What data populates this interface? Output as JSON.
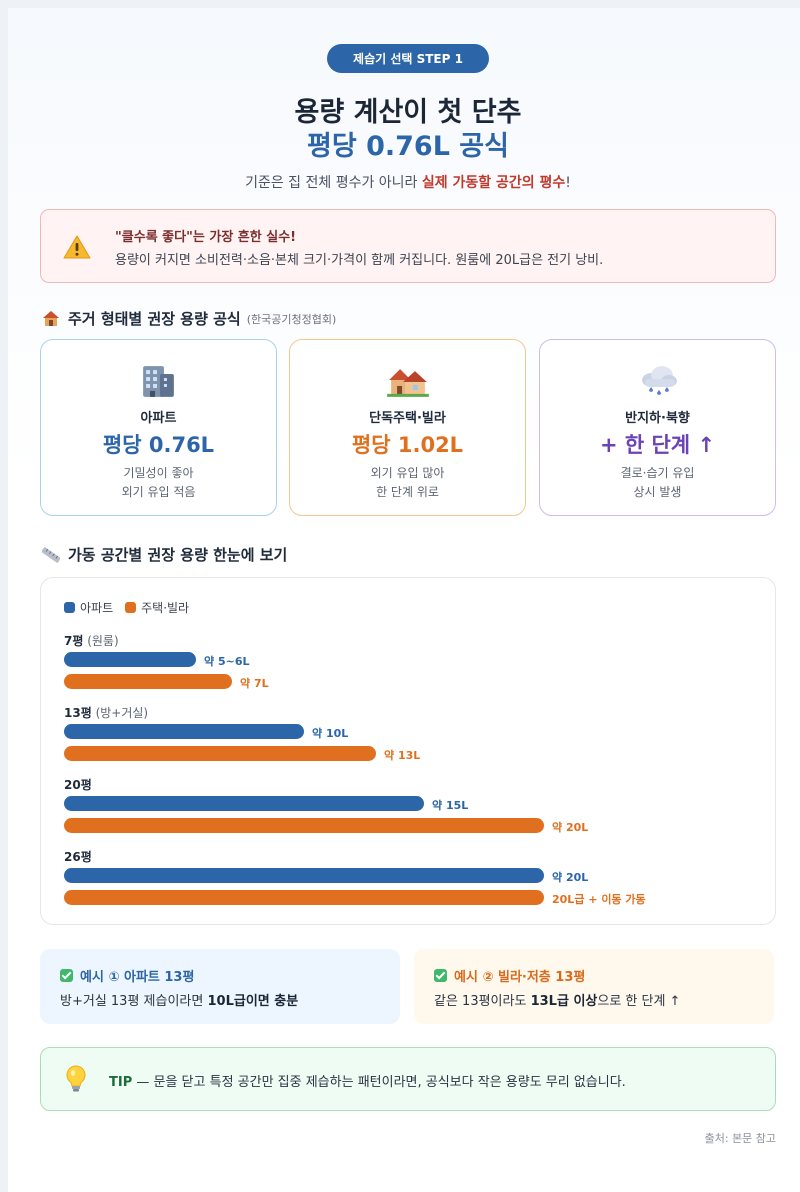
{
  "badge": "제습기 선택 STEP 1",
  "title_line1": "용량 계산이 첫 단추",
  "title_line2": "평당 0.76L 공식",
  "subtitle": {
    "pre": "기준은 집 전체 평수가 아니라 ",
    "highlight": "실제 가동할 공간의 평수",
    "post": "!"
  },
  "warning": {
    "icon": "warning-icon",
    "title": "\"클수록 좋다\"는 가장 흔한 실수!",
    "desc": "용량이 커지면 소비전력·소음·본체 크기·가격이 함께 커집니다. 원룸에 20L급은 전기 낭비."
  },
  "section1": {
    "icon": "house-icon",
    "title": "주거 형태별 권장 용량 공식",
    "note": "(한국공기청정협회)"
  },
  "cards": [
    {
      "icon": "apartment-icon",
      "name": "아파트",
      "value": "평당 0.76L",
      "desc1": "기밀성이 좋아",
      "desc2": "외기 유입 적음",
      "color": "#2c65a8",
      "border": "#a9d3ec"
    },
    {
      "icon": "houses-icon",
      "name": "단독주택·빌라",
      "value": "평당 1.02L",
      "desc1": "외기 유입 많아",
      "desc2": "한 단계 위로",
      "color": "#e0701f",
      "border": "#f3c78f"
    },
    {
      "icon": "rain-cloud-icon",
      "name": "반지하·북향",
      "value": "+ 한 단계 ↑",
      "desc1": "결로·습기 유입",
      "desc2": "상시 발생",
      "color": "#6a43b6",
      "border": "#cdbcec"
    }
  ],
  "section2": {
    "icon": "ruler-icon",
    "title": "가동 공간별 권장 용량 한눈에 보기"
  },
  "chart_data": {
    "type": "bar",
    "orientation": "horizontal",
    "legend": [
      "아파트",
      "주택·빌라"
    ],
    "legend_position": "top-left",
    "colors": {
      "apartment": "#2c65a8",
      "villa": "#e0701f"
    },
    "xlim": [
      0,
      20
    ],
    "groups": [
      {
        "label": "7평",
        "note": "(원룸)",
        "apartment": 5.5,
        "apartment_label": "약 5~6L",
        "villa": 7,
        "villa_label": "약 7L"
      },
      {
        "label": "13평",
        "note": "(방+거실)",
        "apartment": 10,
        "apartment_label": "약 10L",
        "villa": 13,
        "villa_label": "약 13L"
      },
      {
        "label": "20평",
        "note": "",
        "apartment": 15,
        "apartment_label": "약 15L",
        "villa": 20,
        "villa_label": "약 20L"
      },
      {
        "label": "26평",
        "note": "",
        "apartment": 20,
        "apartment_label": "약 20L",
        "villa": 20,
        "villa_label": "20L급 + 이동 가동"
      }
    ]
  },
  "examples": [
    {
      "title": "예시 ① 아파트 13평",
      "pre": "방+거실 13평 제습이라면 ",
      "bold": "10L급이면 충분",
      "post": "",
      "color": "#2c65a8",
      "bg": "#edf6fe"
    },
    {
      "title": "예시 ② 빌라·저층 13평",
      "pre": "같은 13평이라도 ",
      "bold": "13L급 이상",
      "post": "으로 한 단계 ↑",
      "color": "#d9691c",
      "bg": "#fff8ec"
    }
  ],
  "tip": {
    "icon": "lightbulb-icon",
    "label": "TIP",
    "text": " — 문을 닫고 특정 공간만 집중 제습하는 패턴이라면, 공식보다 작은 용량도 무리 없습니다."
  },
  "source": "출처: 본문 참고"
}
